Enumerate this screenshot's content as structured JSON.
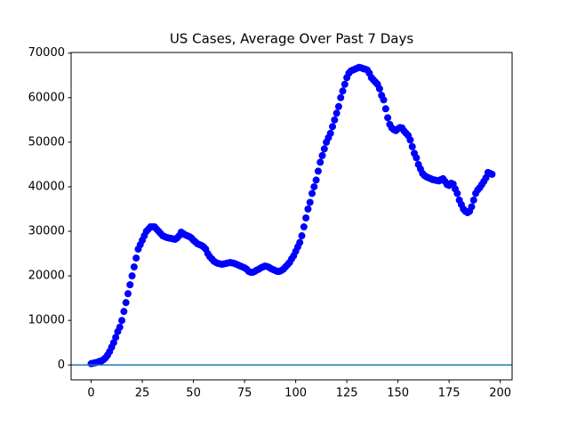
{
  "chart_data": {
    "type": "scatter",
    "title": "US Cases, Average Over Past 7 Days",
    "x": [
      0,
      1,
      2,
      3,
      4,
      5,
      6,
      7,
      8,
      9,
      10,
      11,
      12,
      13,
      14,
      15,
      16,
      17,
      18,
      19,
      20,
      21,
      22,
      23,
      24,
      25,
      26,
      27,
      28,
      29,
      30,
      31,
      32,
      33,
      34,
      35,
      36,
      37,
      38,
      39,
      40,
      41,
      42,
      43,
      44,
      45,
      46,
      47,
      48,
      49,
      50,
      51,
      52,
      53,
      54,
      55,
      56,
      57,
      58,
      59,
      60,
      61,
      62,
      63,
      64,
      65,
      66,
      67,
      68,
      69,
      70,
      71,
      72,
      73,
      74,
      75,
      76,
      77,
      78,
      79,
      80,
      81,
      82,
      83,
      84,
      85,
      86,
      87,
      88,
      89,
      90,
      91,
      92,
      93,
      94,
      95,
      96,
      97,
      98,
      99,
      100,
      101,
      102,
      103,
      104,
      105,
      106,
      107,
      108,
      109,
      110,
      111,
      112,
      113,
      114,
      115,
      116,
      117,
      118,
      119,
      120,
      121,
      122,
      123,
      124,
      125,
      126,
      127,
      128,
      129,
      130,
      131,
      132,
      133,
      134,
      135,
      136,
      137,
      138,
      139,
      140,
      141,
      142,
      143,
      144,
      145,
      146,
      147,
      148,
      149,
      150,
      151,
      152,
      153,
      154,
      155,
      156,
      157,
      158,
      159,
      160,
      161,
      162,
      163,
      164,
      165,
      166,
      167,
      168,
      169,
      170,
      171,
      172,
      173,
      174,
      175,
      176,
      177,
      178,
      179,
      180,
      181,
      182,
      183,
      184,
      185,
      186,
      187,
      188,
      189,
      190,
      191,
      192,
      193,
      194,
      195,
      196
    ],
    "values": [
      300,
      400,
      500,
      600,
      800,
      900,
      1200,
      1600,
      2200,
      3000,
      4000,
      5000,
      6200,
      7500,
      8500,
      10000,
      12000,
      14000,
      16000,
      18000,
      20000,
      22000,
      24000,
      26000,
      27000,
      28000,
      29000,
      30000,
      30500,
      31000,
      31000,
      31000,
      30500,
      30000,
      29500,
      29000,
      28800,
      28600,
      28500,
      28400,
      28300,
      28200,
      28500,
      29000,
      29800,
      29500,
      29200,
      29000,
      28800,
      28500,
      28000,
      27600,
      27200,
      27000,
      26800,
      26500,
      26000,
      25000,
      24300,
      23800,
      23300,
      23000,
      22800,
      22700,
      22600,
      22700,
      22800,
      22900,
      23000,
      22900,
      22800,
      22600,
      22400,
      22200,
      22000,
      21800,
      21500,
      21000,
      20800,
      20800,
      21000,
      21300,
      21500,
      21800,
      22000,
      22200,
      22100,
      21900,
      21600,
      21400,
      21200,
      21000,
      21000,
      21200,
      21500,
      22000,
      22500,
      23000,
      23800,
      24500,
      25500,
      26500,
      27500,
      29000,
      31000,
      33000,
      35000,
      36500,
      38500,
      40000,
      41500,
      43500,
      45500,
      47000,
      48500,
      50000,
      51000,
      52000,
      53500,
      55000,
      56500,
      58000,
      60000,
      61500,
      63000,
      64500,
      65500,
      66000,
      66200,
      66400,
      66600,
      66800,
      66700,
      66500,
      66400,
      66200,
      65500,
      64500,
      64000,
      63500,
      63000,
      62000,
      60500,
      59500,
      57500,
      55500,
      54000,
      53200,
      52800,
      52600,
      53000,
      53300,
      53200,
      52500,
      52000,
      51500,
      50500,
      49000,
      47500,
      46500,
      45000,
      44000,
      43000,
      42500,
      42200,
      42000,
      41800,
      41600,
      41500,
      41400,
      41300,
      41600,
      41800,
      41200,
      40500,
      40300,
      40800,
      40600,
      39500,
      38500,
      37000,
      36000,
      35000,
      34500,
      34200,
      34500,
      35500,
      37000,
      38500,
      39300,
      39800,
      40500,
      41200,
      42000,
      43200,
      43000,
      42800
    ],
    "color": "#0000ff",
    "hline": 0,
    "hline_color": "#1f77b4",
    "xlim": [
      -9.8,
      205.8
    ],
    "xticks": [
      0,
      25,
      50,
      75,
      100,
      125,
      150,
      175,
      200
    ],
    "ylim": [
      -3340,
      70140
    ],
    "yticks": [
      0,
      10000,
      20000,
      30000,
      40000,
      50000,
      60000,
      70000
    ]
  }
}
